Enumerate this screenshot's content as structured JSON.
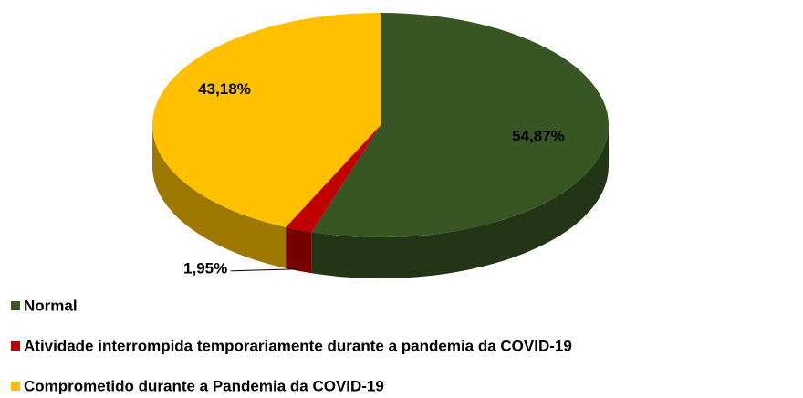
{
  "chart_data": {
    "type": "pie3d",
    "categories": [
      "Normal",
      "Atividade interrompida temporariamente durante a pandemia da COVID-19",
      "Comprometido durante a Pandemia da COVID-19"
    ],
    "values": [
      54.87,
      1.95,
      43.18
    ],
    "value_labels": [
      "54,87%",
      "1,95%",
      "43,18%"
    ],
    "colors": [
      "#375623",
      "#c00000",
      "#ffc000"
    ],
    "legend": "bottom-left"
  }
}
